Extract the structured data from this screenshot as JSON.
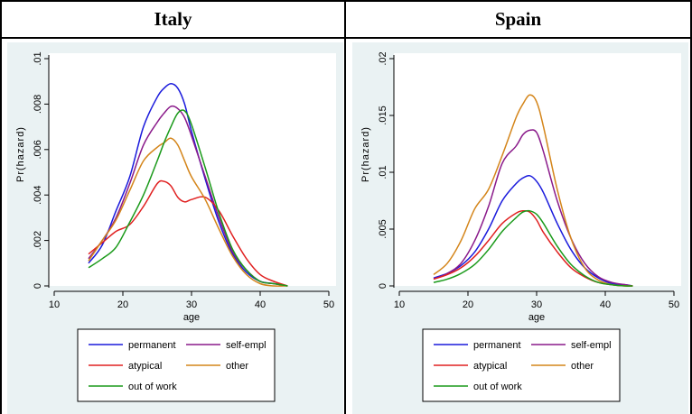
{
  "table": {
    "headers": [
      "Italy",
      "Spain"
    ]
  },
  "legend": {
    "entries": [
      {
        "name": "permanent",
        "color": "#1a1adc"
      },
      {
        "name": "self-empl",
        "color": "#8a1a8a"
      },
      {
        "name": "atypical",
        "color": "#e02020"
      },
      {
        "name": "other",
        "color": "#d4851a"
      },
      {
        "name": "out of work",
        "color": "#1a9a1a"
      }
    ]
  },
  "chart_data": [
    {
      "type": "line",
      "title": "Italy",
      "xlabel": "age",
      "ylabel": "Pr(hazard)",
      "xlim": [
        10,
        50
      ],
      "ylim": [
        0,
        0.01
      ],
      "xticks": [
        "10",
        "20",
        "30",
        "40",
        "50"
      ],
      "yticks": [
        "0",
        ".002",
        ".004",
        ".006",
        ".008",
        ".01"
      ],
      "background": "#eaf2f3",
      "grid": false,
      "legend_position": "bottom",
      "x": [
        15,
        17,
        19,
        21,
        23,
        25,
        26,
        27,
        28,
        29,
        30,
        32,
        34,
        36,
        38,
        40,
        42,
        44
      ],
      "series": [
        {
          "name": "permanent",
          "color": "#1a1adc",
          "values": [
            0.001,
            0.0018,
            0.0033,
            0.0048,
            0.007,
            0.0083,
            0.0087,
            0.0089,
            0.0087,
            0.008,
            0.0068,
            0.0047,
            0.0028,
            0.0014,
            0.0006,
            0.0002,
            0.0001,
            0.0
          ]
        },
        {
          "name": "self-empl",
          "color": "#8a1a8a",
          "values": [
            0.0012,
            0.002,
            0.003,
            0.0045,
            0.0062,
            0.0072,
            0.0076,
            0.0079,
            0.0078,
            0.0074,
            0.0066,
            0.0048,
            0.003,
            0.0015,
            0.0007,
            0.0002,
            0.0001,
            0.0
          ]
        },
        {
          "name": "atypical",
          "color": "#e02020",
          "values": [
            0.0014,
            0.0019,
            0.0024,
            0.0027,
            0.0035,
            0.0045,
            0.0046,
            0.0044,
            0.0039,
            0.0037,
            0.0038,
            0.0039,
            0.0033,
            0.0022,
            0.0012,
            0.0005,
            0.0002,
            0.0
          ]
        },
        {
          "name": "other",
          "color": "#d4851a",
          "values": [
            0.0011,
            0.002,
            0.0029,
            0.0042,
            0.0055,
            0.0061,
            0.0063,
            0.0065,
            0.0062,
            0.0055,
            0.0048,
            0.0038,
            0.0025,
            0.0013,
            0.0005,
            0.0001,
            0.0,
            0.0
          ]
        },
        {
          "name": "out of work",
          "color": "#1a9a1a",
          "values": [
            0.0008,
            0.0012,
            0.0017,
            0.0028,
            0.004,
            0.0055,
            0.0063,
            0.007,
            0.0076,
            0.0077,
            0.0071,
            0.0052,
            0.0032,
            0.0016,
            0.0007,
            0.0002,
            0.0001,
            0.0
          ]
        }
      ]
    },
    {
      "type": "line",
      "title": "Spain",
      "xlabel": "age",
      "ylabel": "Pr(hazard)",
      "xlim": [
        10,
        50
      ],
      "ylim": [
        0,
        0.02
      ],
      "xticks": [
        "10",
        "20",
        "30",
        "40",
        "50"
      ],
      "yticks": [
        "0",
        ".005",
        ".01",
        ".015",
        ".02"
      ],
      "background": "#eaf2f3",
      "grid": false,
      "legend_position": "bottom",
      "x": [
        15,
        17,
        19,
        21,
        23,
        25,
        27,
        28,
        29,
        30,
        31,
        33,
        35,
        37,
        39,
        41,
        43,
        44
      ],
      "series": [
        {
          "name": "permanent",
          "color": "#1a1adc",
          "values": [
            0.0007,
            0.0011,
            0.0018,
            0.003,
            0.005,
            0.0075,
            0.009,
            0.0095,
            0.0097,
            0.0092,
            0.0082,
            0.0055,
            0.0032,
            0.0016,
            0.0007,
            0.0002,
            0.0001,
            0.0
          ]
        },
        {
          "name": "self-empl",
          "color": "#8a1a8a",
          "values": [
            0.0006,
            0.0011,
            0.002,
            0.004,
            0.007,
            0.0108,
            0.0123,
            0.0133,
            0.0137,
            0.0135,
            0.0118,
            0.0075,
            0.0042,
            0.002,
            0.0008,
            0.0003,
            0.0001,
            0.0
          ]
        },
        {
          "name": "atypical",
          "color": "#e02020",
          "values": [
            0.0006,
            0.001,
            0.0016,
            0.0026,
            0.004,
            0.0055,
            0.0064,
            0.0066,
            0.0065,
            0.0058,
            0.0047,
            0.003,
            0.0016,
            0.0008,
            0.0003,
            0.0001,
            0.0,
            0.0
          ]
        },
        {
          "name": "other",
          "color": "#d4851a",
          "values": [
            0.001,
            0.002,
            0.004,
            0.0068,
            0.0085,
            0.0115,
            0.0148,
            0.016,
            0.0168,
            0.0162,
            0.014,
            0.0085,
            0.0042,
            0.0016,
            0.0005,
            0.0001,
            0.0,
            0.0
          ]
        },
        {
          "name": "out of work",
          "color": "#1a9a1a",
          "values": [
            0.0003,
            0.0006,
            0.0011,
            0.0019,
            0.0032,
            0.0048,
            0.006,
            0.0065,
            0.0066,
            0.0063,
            0.0055,
            0.0035,
            0.0019,
            0.0009,
            0.0003,
            0.0001,
            0.0,
            0.0
          ]
        }
      ]
    }
  ]
}
